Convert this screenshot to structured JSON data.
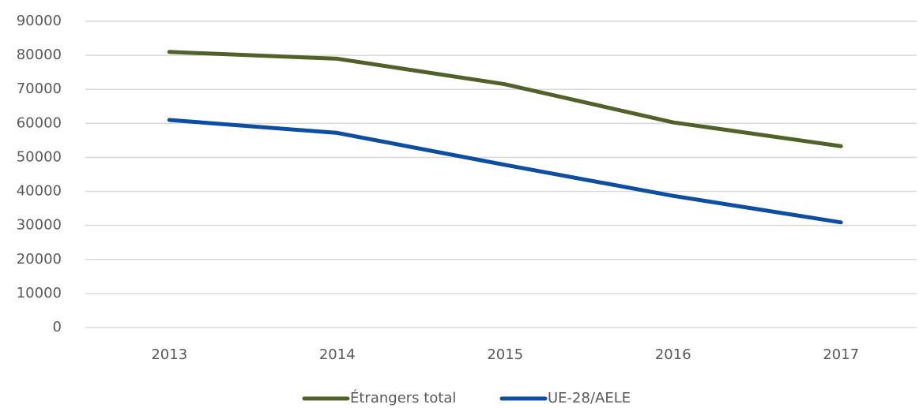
{
  "chart_data": {
    "type": "line",
    "categories": [
      "2013",
      "2014",
      "2015",
      "2016",
      "2017"
    ],
    "series": [
      {
        "name": "Étrangers total",
        "color": "#4f6228",
        "values": [
          81000,
          79000,
          71500,
          60300,
          53300
        ]
      },
      {
        "name": "UE-28/AELE",
        "color": "#0b4ea2",
        "values": [
          61000,
          57200,
          47800,
          38700,
          30900
        ]
      }
    ],
    "ylim": [
      0,
      90000
    ],
    "yticks": [
      0,
      10000,
      20000,
      30000,
      40000,
      50000,
      60000,
      70000,
      80000,
      90000
    ],
    "grid": true,
    "legend": "bottom"
  }
}
